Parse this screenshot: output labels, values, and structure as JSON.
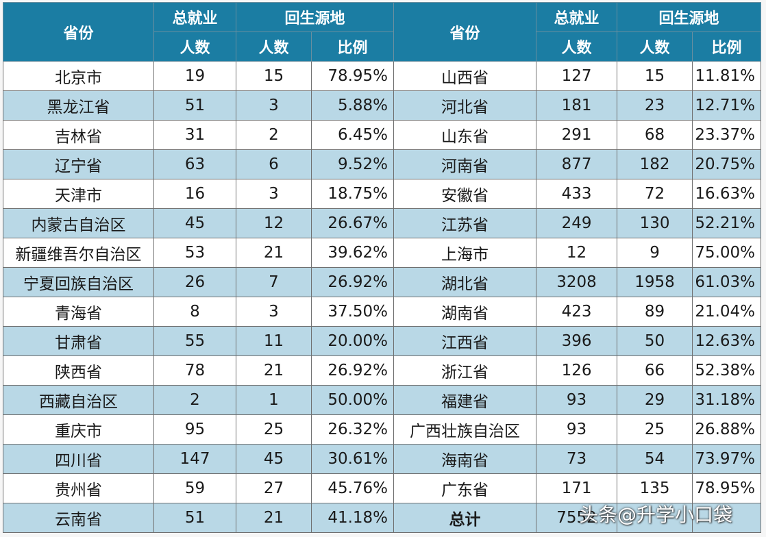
{
  "header": {
    "province": "省份",
    "total_line1": "总就业",
    "total_line2": "人数",
    "return_group": "回生源地",
    "return_count": "人数",
    "return_ratio": "比例"
  },
  "colors": {
    "header_bg": "#1b7da3",
    "alt_row_bg": "#b9d8e6",
    "plain_row_bg": "#ffffff"
  },
  "left_rows": [
    {
      "province": "北京市",
      "total": "19",
      "return": "15",
      "ratio": "78.95%"
    },
    {
      "province": "黑龙江省",
      "total": "51",
      "return": "3",
      "ratio": "5.88%"
    },
    {
      "province": "吉林省",
      "total": "31",
      "return": "2",
      "ratio": "6.45%"
    },
    {
      "province": "辽宁省",
      "total": "63",
      "return": "6",
      "ratio": "9.52%"
    },
    {
      "province": "天津市",
      "total": "16",
      "return": "3",
      "ratio": "18.75%"
    },
    {
      "province": "内蒙古自治区",
      "total": "45",
      "return": "12",
      "ratio": "26.67%"
    },
    {
      "province": "新疆维吾尔自治区",
      "total": "53",
      "return": "21",
      "ratio": "39.62%"
    },
    {
      "province": "宁夏回族自治区",
      "total": "26",
      "return": "7",
      "ratio": "26.92%"
    },
    {
      "province": "青海省",
      "total": "8",
      "return": "3",
      "ratio": "37.50%"
    },
    {
      "province": "甘肃省",
      "total": "55",
      "return": "11",
      "ratio": "20.00%"
    },
    {
      "province": "陕西省",
      "total": "78",
      "return": "21",
      "ratio": "26.92%"
    },
    {
      "province": "西藏自治区",
      "total": "2",
      "return": "1",
      "ratio": "50.00%"
    },
    {
      "province": "重庆市",
      "total": "95",
      "return": "25",
      "ratio": "26.32%"
    },
    {
      "province": "四川省",
      "total": "147",
      "return": "45",
      "ratio": "30.61%"
    },
    {
      "province": "贵州省",
      "total": "59",
      "return": "27",
      "ratio": "45.76%"
    },
    {
      "province": "云南省",
      "total": "51",
      "return": "21",
      "ratio": "41.18%"
    }
  ],
  "right_rows": [
    {
      "province": "山西省",
      "total": "127",
      "return": "15",
      "ratio": "11.81%"
    },
    {
      "province": "河北省",
      "total": "181",
      "return": "23",
      "ratio": "12.71%"
    },
    {
      "province": "山东省",
      "total": "291",
      "return": "68",
      "ratio": "23.37%"
    },
    {
      "province": "河南省",
      "total": "877",
      "return": "182",
      "ratio": "20.75%"
    },
    {
      "province": "安徽省",
      "total": "433",
      "return": "72",
      "ratio": "16.63%"
    },
    {
      "province": "江苏省",
      "total": "249",
      "return": "130",
      "ratio": "52.21%"
    },
    {
      "province": "上海市",
      "total": "12",
      "return": "9",
      "ratio": "75.00%"
    },
    {
      "province": "湖北省",
      "total": "3208",
      "return": "1958",
      "ratio": "61.03%"
    },
    {
      "province": "湖南省",
      "total": "423",
      "return": "89",
      "ratio": "21.04%"
    },
    {
      "province": "江西省",
      "total": "396",
      "return": "50",
      "ratio": "12.63%"
    },
    {
      "province": "浙江省",
      "total": "126",
      "return": "66",
      "ratio": "52.38%"
    },
    {
      "province": "福建省",
      "total": "93",
      "return": "29",
      "ratio": "31.18%"
    },
    {
      "province": "广西壮族自治区",
      "total": "93",
      "return": "25",
      "ratio": "26.88%"
    },
    {
      "province": "海南省",
      "total": "73",
      "return": "54",
      "ratio": "73.97%"
    },
    {
      "province": "广东省",
      "total": "171",
      "return": "135",
      "ratio": "78.95%"
    },
    {
      "province": "总计",
      "total": "7552",
      "return": "",
      "ratio": ""
    }
  ],
  "watermark": "头条@升学小口袋"
}
